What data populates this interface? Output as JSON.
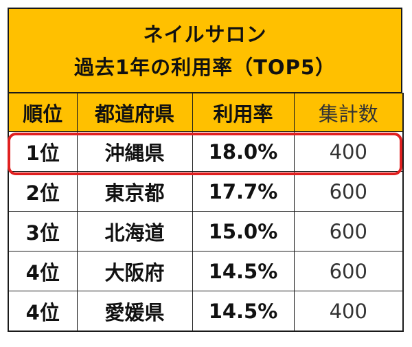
{
  "title": {
    "line1": "ネイルサロン",
    "line2": "過去1年の利用率（TOP5）"
  },
  "colors": {
    "header_bg": "#ffc000",
    "highlight_border": "#e02020"
  },
  "chart_data": {
    "type": "table",
    "columns": [
      "順位",
      "都道府県",
      "利用率",
      "集計数"
    ],
    "rows": [
      [
        "1位",
        "沖縄県",
        "18.0%",
        "400"
      ],
      [
        "2位",
        "東京都",
        "17.7%",
        "600"
      ],
      [
        "3位",
        "北海道",
        "15.0%",
        "600"
      ],
      [
        "4位",
        "大阪府",
        "14.5%",
        "600"
      ],
      [
        "4位",
        "愛媛県",
        "14.5%",
        "400"
      ]
    ],
    "highlighted_row": 0
  }
}
